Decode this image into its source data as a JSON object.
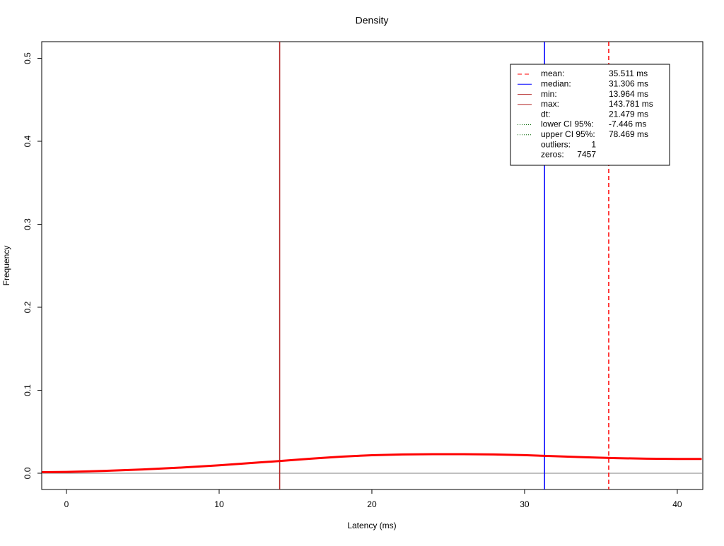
{
  "chart_data": {
    "type": "line",
    "title": "Density",
    "xlabel": "Latency (ms)",
    "ylabel": "Frequency",
    "x": [
      -1.6,
      0,
      2.5,
      5,
      7.5,
      10,
      12.5,
      14,
      16,
      18,
      20,
      22,
      24,
      26,
      28,
      30,
      32,
      34,
      36,
      38,
      40,
      41.6
    ],
    "series": [
      {
        "name": "density",
        "color": "#ff0000",
        "values": [
          0.0012,
          0.0016,
          0.0028,
          0.0045,
          0.0068,
          0.0095,
          0.0128,
          0.0148,
          0.0175,
          0.02,
          0.0217,
          0.0226,
          0.023,
          0.023,
          0.0226,
          0.0218,
          0.0205,
          0.0192,
          0.0182,
          0.0175,
          0.0172,
          0.0172
        ]
      }
    ],
    "xlim": [
      -1.62,
      41.67
    ],
    "ylim": [
      -0.0196,
      0.52
    ],
    "xticks": [
      0,
      10,
      20,
      30,
      40
    ],
    "yticks": [
      {
        "value": 0,
        "label": "0.0"
      },
      0.1,
      0.2,
      0.3,
      0.4,
      0.5
    ],
    "baseline": {
      "value": 0,
      "color": "#808080"
    },
    "legend_position": "top-right",
    "legend": [
      {
        "name": "mean:",
        "value": 35.511,
        "label": "35.511 ms",
        "color": "#ff0000",
        "dash": "dashed"
      },
      {
        "name": "median:",
        "value": 31.306,
        "label": "31.306 ms",
        "color": "#0000ff",
        "dash": "solid"
      },
      {
        "name": "min:",
        "value": 13.964,
        "label": "13.964 ms",
        "color": "#b22222",
        "dash": "solid"
      },
      {
        "name": "max:",
        "value": 143.781,
        "label": "143.781 ms",
        "color": "#b22222",
        "dash": "solid"
      },
      {
        "name": "dt:",
        "value": 21.479,
        "label": "21.479 ms"
      },
      {
        "name": "lower CI 95%:",
        "value": -7.446,
        "label": "-7.446 ms",
        "color": "#006400",
        "dash": "dotted"
      },
      {
        "name": "upper CI 95%:",
        "value": 78.469,
        "label": "78.469 ms",
        "color": "#006400",
        "dash": "dotted"
      },
      {
        "name": "outliers:",
        "value": 1
      },
      {
        "name": "zeros:",
        "value": 7457
      }
    ]
  }
}
